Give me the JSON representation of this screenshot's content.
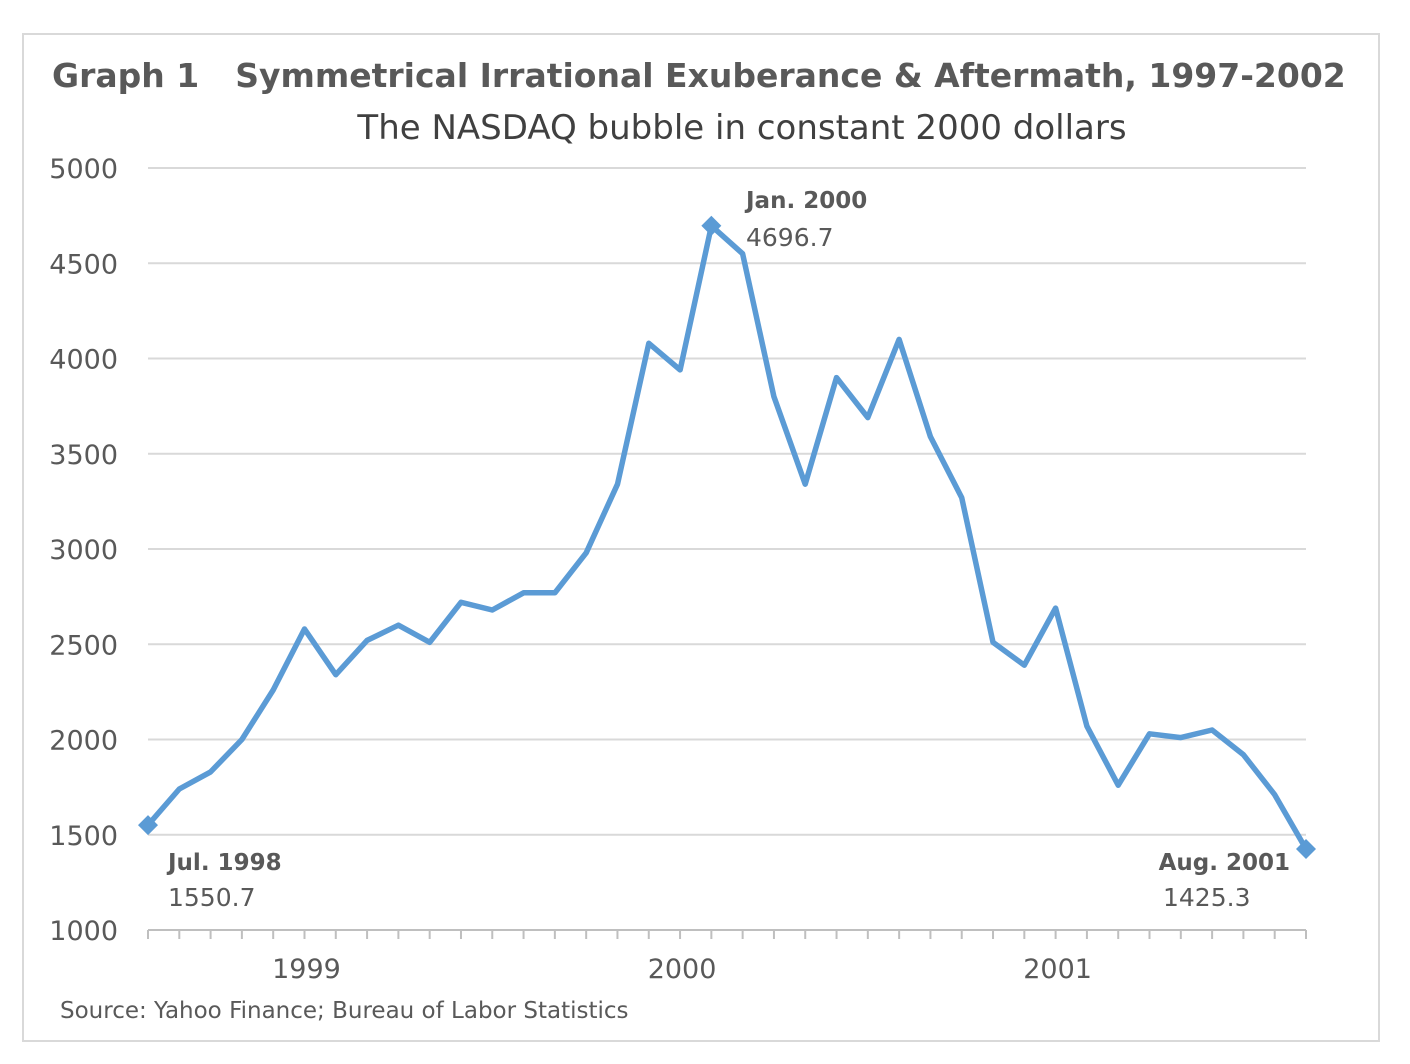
{
  "figure": {
    "graph_number": "Graph 1",
    "title": "Symmetrical Irrational Exuberance & Aftermath, 1997-2002",
    "subtitle": "The NASDAQ bubble in constant 2000 dollars",
    "source": "Source: Yahoo Finance; Bureau of Labor Statistics"
  },
  "chart_data": {
    "type": "line",
    "title": "Symmetrical Irrational Exuberance & Aftermath, 1997-2002",
    "subtitle": "The NASDAQ bubble in constant 2000 dollars",
    "xlabel": "",
    "ylabel": "",
    "ylim": [
      1000,
      5000
    ],
    "yticks": [
      "1000",
      "1500",
      "2000",
      "2500",
      "3000",
      "3500",
      "4000",
      "4500",
      "5000"
    ],
    "x_tick_labels": [
      {
        "label": "1999",
        "month_index": 5
      },
      {
        "label": "2000",
        "month_index": 17
      },
      {
        "label": "2001",
        "month_index": 29
      }
    ],
    "grid": "horizontal",
    "legend": "none",
    "line_color": "#5b9bd5",
    "series": [
      {
        "values": [
          1550.7,
          1740,
          1830,
          2000,
          2260,
          2580,
          2340,
          2520,
          2600,
          2510,
          2720,
          2680,
          2770,
          2770,
          2980,
          3340,
          4080,
          3940,
          4696.7,
          4550,
          3800,
          3340,
          3900,
          3690,
          4100,
          3590,
          3270,
          2510,
          2390,
          2690,
          2070,
          1760,
          2030,
          2010,
          2050,
          1920,
          1710,
          1425.3
        ]
      }
    ],
    "annotations": [
      {
        "label": "Jul. 1998",
        "value": "1550.7",
        "month_index": 0
      },
      {
        "label": "Jan. 2000",
        "value": "4696.7",
        "month_index": 18
      },
      {
        "label": "Aug. 2001",
        "value": "1425.3",
        "month_index": 37
      }
    ]
  }
}
